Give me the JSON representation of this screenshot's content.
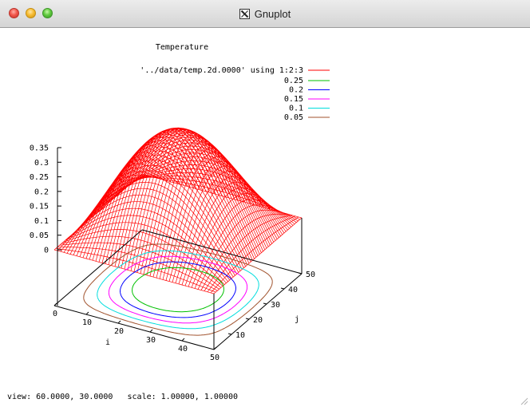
{
  "window": {
    "title": "Gnuplot"
  },
  "chart_data": {
    "type": "surface",
    "title": "Temperature",
    "surface_label": "'../data/temp.2d.0000' using 1:2:3",
    "xlabel": "i",
    "ylabel": "j",
    "zlabel": "",
    "xlim": [
      0,
      50
    ],
    "ylim": [
      0,
      50
    ],
    "zlim": [
      0,
      0.35
    ],
    "x_ticks": [
      "0",
      "10",
      "20",
      "30",
      "40",
      "50"
    ],
    "y_ticks": [
      "10",
      "20",
      "30",
      "40",
      "50"
    ],
    "z_ticks": [
      "0.35",
      "0.3",
      "0.25",
      "0.2",
      "0.15",
      "0.1",
      "0.05",
      "0"
    ],
    "legend_position": "top-right",
    "surface": {
      "function": "0.35 * sin(pi*i/50) * sin(pi*j/50)",
      "peak": 0.35,
      "color": "#ff0000"
    },
    "contours": [
      {
        "label": "0.25",
        "level": 0.25,
        "color": "#00c000"
      },
      {
        "label": "0.2",
        "level": 0.2,
        "color": "#0000ff"
      },
      {
        "label": "0.15",
        "level": 0.15,
        "color": "#ff00ff"
      },
      {
        "label": "0.1",
        "level": 0.1,
        "color": "#00dddd"
      },
      {
        "label": "0.05",
        "level": 0.05,
        "color": "#a0522d"
      }
    ]
  },
  "status": {
    "text": "view: 60.0000, 30.0000   scale: 1.00000, 1.00000"
  }
}
